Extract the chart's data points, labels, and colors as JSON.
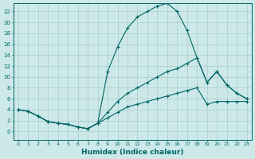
{
  "xlabel": "Humidex (Indice chaleur)",
  "bg_color": "#cce8e8",
  "line_color": "#006666",
  "grid_color": "#aacccc",
  "xlim": [
    -0.5,
    23.5
  ],
  "ylim": [
    -1.5,
    23.5
  ],
  "xticks": [
    0,
    1,
    2,
    3,
    4,
    5,
    6,
    7,
    8,
    9,
    10,
    11,
    12,
    13,
    14,
    15,
    16,
    17,
    18,
    19,
    20,
    21,
    22,
    23
  ],
  "yticks": [
    0,
    2,
    4,
    6,
    8,
    10,
    12,
    14,
    16,
    18,
    20,
    22
  ],
  "line1_x": [
    0,
    1,
    2,
    3,
    4,
    5,
    6,
    7,
    8,
    9,
    10,
    11,
    12,
    13,
    14,
    15,
    16,
    17,
    18,
    19,
    20,
    21,
    22,
    23
  ],
  "line1_y": [
    4.0,
    3.7,
    2.8,
    1.8,
    1.5,
    1.3,
    0.8,
    0.5,
    1.5,
    11,
    15.5,
    19.0,
    21.0,
    22.0,
    23.0,
    23.5,
    22.0,
    18.5,
    13.5,
    9.0,
    11.0,
    8.5,
    7.0,
    6.0
  ],
  "line2_x": [
    0,
    1,
    2,
    3,
    4,
    5,
    6,
    7,
    8,
    9,
    10,
    11,
    12,
    13,
    14,
    15,
    16,
    17,
    18,
    19,
    20,
    21,
    22,
    23
  ],
  "line2_y": [
    4.0,
    3.7,
    2.8,
    1.8,
    1.5,
    1.3,
    0.8,
    0.5,
    1.5,
    3.5,
    5.5,
    7.0,
    8.0,
    9.0,
    10.0,
    11.0,
    11.5,
    12.5,
    13.5,
    9.0,
    11.0,
    8.5,
    7.0,
    6.0
  ],
  "line3_x": [
    0,
    1,
    2,
    3,
    4,
    5,
    6,
    7,
    8,
    9,
    10,
    11,
    12,
    13,
    14,
    15,
    16,
    17,
    18,
    19,
    20,
    21,
    22,
    23
  ],
  "line3_y": [
    4.0,
    3.7,
    2.8,
    1.8,
    1.5,
    1.3,
    0.8,
    0.5,
    1.5,
    2.5,
    3.5,
    4.5,
    5.0,
    5.5,
    6.0,
    6.5,
    7.0,
    7.5,
    8.0,
    5.0,
    5.5,
    5.5,
    5.5,
    5.5
  ]
}
